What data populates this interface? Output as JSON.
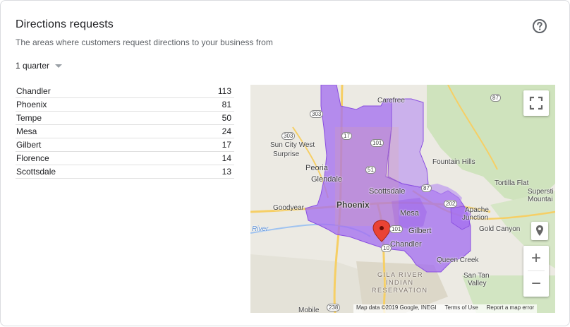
{
  "card": {
    "title": "Directions requests",
    "subtitle": "The areas where customers request directions to your business from",
    "help_icon": "help-circle-icon"
  },
  "period": {
    "selected": "1 quarter",
    "icon": "dropdown-caret-icon"
  },
  "locations": [
    {
      "name": "Chandler",
      "count": "113"
    },
    {
      "name": "Phoenix",
      "count": "81"
    },
    {
      "name": "Tempe",
      "count": "50"
    },
    {
      "name": "Mesa",
      "count": "24"
    },
    {
      "name": "Gilbert",
      "count": "17"
    },
    {
      "name": "Florence",
      "count": "14"
    },
    {
      "name": "Scottsdale",
      "count": "13"
    }
  ],
  "map": {
    "labels": {
      "carefree": "Carefree",
      "sun_city_west": "Sun City West",
      "surprise": "Surprise",
      "fountain_hills": "Fountain Hills",
      "peoria": "Peoria",
      "glendale": "Glendale",
      "scottsdale": "Scottsdale",
      "tortilla_flat": "Tortilla Flat",
      "superstition": "Supersti",
      "mountains": "Mountai",
      "goodyear": "Goodyear",
      "phoenix": "Phoenix",
      "mesa": "Mesa",
      "apache_junction_1": "Apache",
      "apache_junction_2": "Junction",
      "river": "River",
      "gilbert": "Gilbert",
      "gold_canyon": "Gold Canyon",
      "chandler": "Chandler",
      "queen_creek": "Queen Creek",
      "gila_river_1": "GILA RIVER",
      "gila_river_2": "INDIAN",
      "gila_river_3": "RESERVATION",
      "san_tan_valley_1": "San Tan",
      "san_tan_valley_2": "Valley",
      "mobile": "Mobile"
    },
    "shields": {
      "s87a": "87",
      "s303a": "303",
      "s303b": "303",
      "s17": "17",
      "s101": "101",
      "s51": "51",
      "s87b": "87",
      "s202": "202",
      "s101b": "101",
      "s10": "10",
      "s238": "238"
    },
    "attribution": {
      "data": "Map data ©2019 Google, INEGI",
      "terms": "Terms of Use",
      "report": "Report a map error"
    },
    "controls": {
      "fullscreen_icon": "fullscreen-icon",
      "pegman_icon": "location-pin-icon",
      "zoom_in": "+",
      "zoom_out": "−"
    },
    "colors": {
      "region_fill": "#a46ff0",
      "region_stroke": "#8a4fe0",
      "land": "#eceae3",
      "park": "#cfe3bd",
      "marker": "#ea4335"
    }
  }
}
